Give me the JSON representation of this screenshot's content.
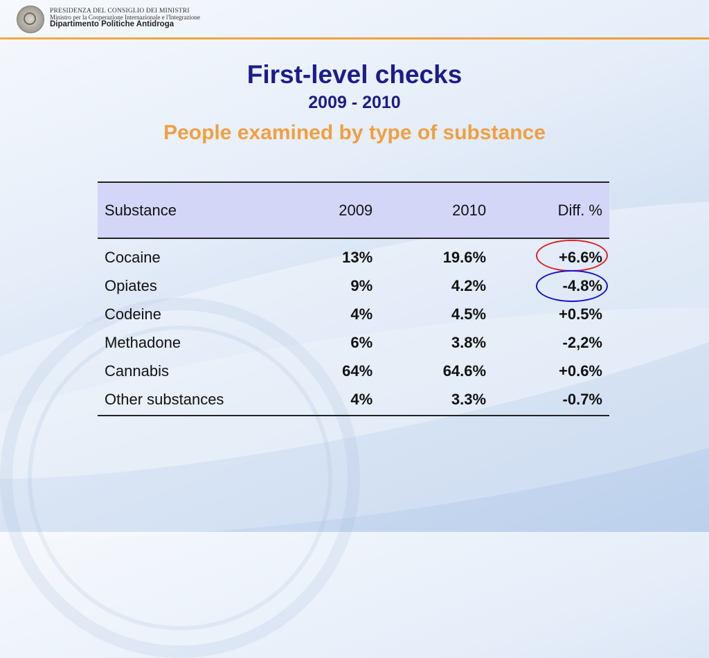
{
  "header": {
    "org_line1": "PRESIDENZA DEL CONSIGLIO DEI MINISTRI",
    "org_line2": "Ministro per la Cooperazione Internazionale e l'Integrazione",
    "org_line3": "Dipartimento Politiche Antidroga"
  },
  "slide": {
    "title": "First-level checks",
    "years": "2009 - 2010",
    "subtitle": "People examined by type of substance"
  },
  "table": {
    "columns": [
      "Substance",
      "2009",
      "2010",
      "Diff. %"
    ],
    "rows": [
      [
        "Cocaine",
        "13%",
        "19.6%",
        "+6.6%"
      ],
      [
        "Opiates",
        "9%",
        "4.2%",
        "-4.8%"
      ],
      [
        "Codeine",
        "4%",
        "4.5%",
        "+0.5%"
      ],
      [
        "Methadone",
        "6%",
        "3.8%",
        "-2,2%"
      ],
      [
        "Cannabis",
        "64%",
        "64.6%",
        "+0.6%"
      ],
      [
        "Other substances",
        "4%",
        "3.3%",
        "-0.7%"
      ]
    ]
  },
  "colors": {
    "title": "#1b1c8c",
    "subtitle": "#f0a040",
    "header_row": "#d3d6f7",
    "highlight_increase": "#e02020",
    "highlight_decrease": "#1010d0"
  }
}
